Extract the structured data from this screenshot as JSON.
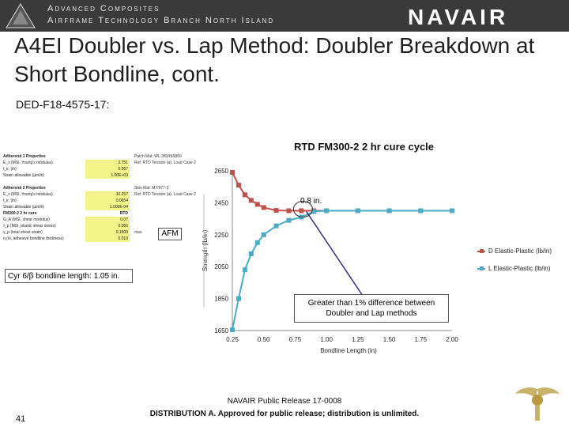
{
  "header": {
    "org_line1": "Advanced Composites",
    "org_line2": "Airframe Technology Branch North Island",
    "brand": "NAVAIR",
    "logo_icon": "unit-emblem-icon"
  },
  "title": "A4EI Doubler vs. Lap Method: Doubler Breakdown at Short Bondline, cont.",
  "doc_id": "DED-F18-4575-17:",
  "reference_table": {
    "rows": [
      {
        "label": "Adherend 1 Properties",
        "value": "",
        "hdr": true
      },
      {
        "label": "E_x (MSI, Young's modulus)",
        "value": "2.751"
      },
      {
        "label": "t_ir, (in)",
        "value": "0.067"
      },
      {
        "label": "Strain allowable (µin/in)",
        "value": "1.00E+03"
      },
      {
        "label": "",
        "value": ""
      },
      {
        "label": "Adherend 2 Properties",
        "value": "",
        "hdr": true
      },
      {
        "label": "E_x (MSI, Young's modulus)",
        "value": "10.257"
      },
      {
        "label": "t_ir, (in)",
        "value": "0.0654"
      },
      {
        "label": "Strain allowable (µin/in)",
        "value": "1.000E-04"
      },
      {
        "label": "FM300-2 2 hr cure",
        "value": "RTD",
        "hdr": true
      },
      {
        "label": "G_A (MSI, shear modulus)",
        "value": "0.07"
      },
      {
        "label": "τ_p (MSI, plastic shear stress)",
        "value": "0.066"
      },
      {
        "label": "γ_p (total shear strain)",
        "value": "0.1500"
      },
      {
        "label": "η (in, adhesive bondline thickness)",
        "value": "0.010"
      }
    ],
    "notes": [
      "Patch Mat: WL:383/IS9350",
      "Ref: RTD Tension (a), Load Case 2",
      "",
      "",
      "",
      "Skin Mat: M7/977-3",
      "Ref: RTD Tension (a), Load Case 2",
      "",
      "",
      "",
      "",
      "",
      "max",
      ""
    ]
  },
  "annotations": {
    "afm": "AFM",
    "cyr": "Cyr 6/β bondline length: 1.05 in.",
    "point_label": "0.8 in.",
    "callout": "Greater than 1% difference between Doubler and Lap methods"
  },
  "chart_data": {
    "type": "line",
    "title": "RTD FM300-2 2 hr cure cycle",
    "xlabel": "Bondline Length (in)",
    "ylabel": "Strength (lb/in)",
    "xlim": [
      0.25,
      2.0
    ],
    "ylim": [
      1650,
      2650
    ],
    "xticks": [
      "0.25",
      "0.50",
      "0.75",
      "1.00",
      "1.25",
      "1.50",
      "1.75",
      "2.00"
    ],
    "yticks": [
      "1650",
      "1850",
      "2050",
      "2250",
      "2450",
      "2650"
    ],
    "legend_position": "right",
    "series": [
      {
        "name": "D Elastic-Plastic (lb/in)",
        "color": "#c0504d",
        "x": [
          0.25,
          0.3,
          0.35,
          0.4,
          0.45,
          0.5,
          0.6,
          0.7,
          0.8,
          0.9,
          1.0,
          1.25,
          1.5,
          1.75,
          2.0
        ],
        "y": [
          2640,
          2560,
          2500,
          2465,
          2440,
          2420,
          2402,
          2400,
          2400,
          2400,
          2400,
          2400,
          2400,
          2400,
          2400
        ]
      },
      {
        "name": "L Elastic-Plastic (lb/in)",
        "color": "#4bacc6",
        "x": [
          0.25,
          0.3,
          0.35,
          0.4,
          0.45,
          0.5,
          0.6,
          0.7,
          0.8,
          0.9,
          1.0,
          1.25,
          1.5,
          1.75,
          2.0
        ],
        "y": [
          1655,
          1850,
          2030,
          2130,
          2200,
          2250,
          2305,
          2340,
          2360,
          2395,
          2400,
          2400,
          2400,
          2400,
          2400
        ]
      }
    ]
  },
  "footer": {
    "release": "NAVAIR Public Release 17-0008",
    "distribution": "DISTRIBUTION A. Approved for public release; distribution is unlimited.",
    "page_number": "41",
    "insignia_icon": "naval-aviator-wings-icon"
  }
}
